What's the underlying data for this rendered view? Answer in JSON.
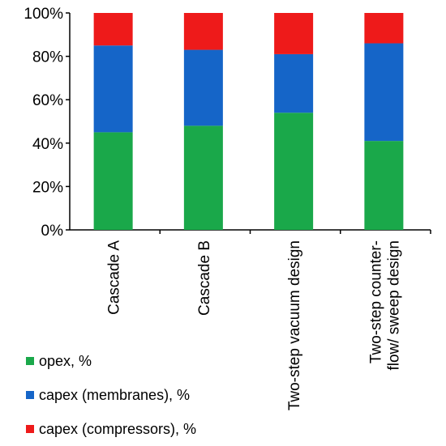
{
  "chart_data": {
    "type": "bar",
    "stacked": true,
    "categories": [
      "Cascade A",
      "Cascade B",
      "Two-step vacuum design",
      "Two-step counter-flow/ sweep design"
    ],
    "category_label_lines": [
      [
        "Cascade A"
      ],
      [
        "Cascade B"
      ],
      [
        "Two-step vacuum design"
      ],
      [
        "Two-step counter-",
        "flow/ sweep design"
      ]
    ],
    "series": [
      {
        "name": "opex, %",
        "color": "#1aa84a",
        "values": [
          45,
          48,
          54,
          41
        ]
      },
      {
        "name": "capex (membranes), %",
        "color": "#1565c8",
        "values": [
          40,
          35,
          27,
          45
        ]
      },
      {
        "name": "capex (compressors), %",
        "color": "#ee1a1a",
        "values": [
          15,
          17,
          19,
          14
        ]
      }
    ],
    "ylim": [
      0,
      100
    ],
    "yticks": [
      "0%",
      "20%",
      "40%",
      "60%",
      "80%",
      "100%"
    ],
    "grid": false,
    "legend_position": "bottom-left"
  }
}
